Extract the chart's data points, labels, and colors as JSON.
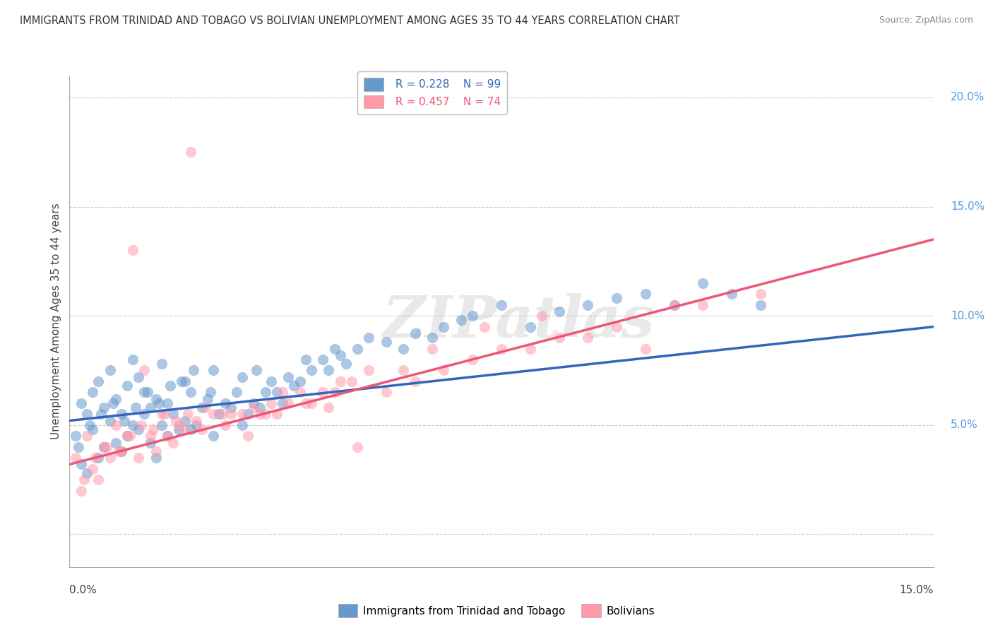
{
  "title": "IMMIGRANTS FROM TRINIDAD AND TOBAGO VS BOLIVIAN UNEMPLOYMENT AMONG AGES 35 TO 44 YEARS CORRELATION CHART",
  "source": "Source: ZipAtlas.com",
  "ylabel": "Unemployment Among Ages 35 to 44 years",
  "legend_blue_label": "Immigrants from Trinidad and Tobago",
  "legend_pink_label": "Bolivians",
  "R_blue": 0.228,
  "N_blue": 99,
  "R_pink": 0.457,
  "N_pink": 74,
  "blue_color": "#6699CC",
  "pink_color": "#FF99AA",
  "blue_line_color": "#3366BB",
  "pink_line_color": "#EE5577",
  "xmin": 0.0,
  "xmax": 15.0,
  "ymin": -1.5,
  "ymax": 21.0,
  "ytick_positions": [
    0.0,
    5.0,
    10.0,
    15.0,
    20.0
  ],
  "ytick_labels": [
    "",
    "5.0%",
    "10.0%",
    "15.0%",
    "20.0%"
  ],
  "blue_line_start_y": 5.2,
  "blue_line_end_y": 9.5,
  "pink_line_start_y": 3.2,
  "pink_line_end_y": 13.5,
  "watermark_text": "ZIPatlas",
  "blue_scatter_x": [
    0.1,
    0.2,
    0.2,
    0.3,
    0.3,
    0.4,
    0.4,
    0.5,
    0.5,
    0.6,
    0.6,
    0.7,
    0.7,
    0.8,
    0.8,
    0.9,
    0.9,
    1.0,
    1.0,
    1.1,
    1.1,
    1.2,
    1.2,
    1.3,
    1.3,
    1.4,
    1.4,
    1.5,
    1.5,
    1.6,
    1.6,
    1.7,
    1.7,
    1.8,
    1.9,
    2.0,
    2.0,
    2.1,
    2.1,
    2.2,
    2.3,
    2.4,
    2.5,
    2.5,
    2.6,
    2.7,
    2.8,
    2.9,
    3.0,
    3.0,
    3.1,
    3.2,
    3.3,
    3.4,
    3.5,
    3.6,
    3.7,
    3.8,
    3.9,
    4.0,
    4.2,
    4.4,
    4.5,
    4.6,
    4.7,
    4.8,
    5.0,
    5.2,
    5.5,
    5.8,
    6.0,
    6.3,
    6.5,
    6.8,
    7.0,
    7.5,
    8.0,
    8.5,
    9.0,
    9.5,
    10.0,
    10.5,
    11.0,
    11.5,
    12.0,
    0.15,
    0.35,
    0.55,
    0.75,
    0.95,
    1.15,
    1.35,
    1.55,
    1.75,
    1.95,
    2.15,
    2.45,
    3.25,
    4.1
  ],
  "blue_scatter_y": [
    4.5,
    3.2,
    6.0,
    5.5,
    2.8,
    4.8,
    6.5,
    3.5,
    7.0,
    4.0,
    5.8,
    5.2,
    7.5,
    4.2,
    6.2,
    3.8,
    5.5,
    4.5,
    6.8,
    5.0,
    8.0,
    4.8,
    7.2,
    5.5,
    6.5,
    4.2,
    5.8,
    3.5,
    6.2,
    5.0,
    7.8,
    4.5,
    6.0,
    5.5,
    4.8,
    5.2,
    7.0,
    4.8,
    6.5,
    5.0,
    5.8,
    6.2,
    4.5,
    7.5,
    5.5,
    6.0,
    5.8,
    6.5,
    5.0,
    7.2,
    5.5,
    6.0,
    5.8,
    6.5,
    7.0,
    6.5,
    6.0,
    7.2,
    6.8,
    7.0,
    7.5,
    8.0,
    7.5,
    8.5,
    8.2,
    7.8,
    8.5,
    9.0,
    8.8,
    8.5,
    9.2,
    9.0,
    9.5,
    9.8,
    10.0,
    10.5,
    9.5,
    10.2,
    10.5,
    10.8,
    11.0,
    10.5,
    11.5,
    11.0,
    10.5,
    4.0,
    5.0,
    5.5,
    6.0,
    5.2,
    5.8,
    6.5,
    6.0,
    6.8,
    7.0,
    7.5,
    6.5,
    7.5,
    8.0
  ],
  "pink_scatter_x": [
    0.1,
    0.2,
    0.3,
    0.4,
    0.5,
    0.6,
    0.7,
    0.8,
    0.9,
    1.0,
    1.1,
    1.2,
    1.3,
    1.4,
    1.5,
    1.6,
    1.7,
    1.8,
    1.9,
    2.0,
    2.1,
    2.2,
    2.3,
    2.5,
    2.7,
    2.8,
    3.0,
    3.1,
    3.2,
    3.4,
    3.5,
    3.6,
    3.8,
    4.0,
    4.2,
    4.4,
    4.5,
    4.7,
    4.9,
    5.0,
    5.5,
    6.0,
    6.5,
    7.0,
    7.5,
    8.0,
    8.5,
    9.0,
    9.5,
    10.0,
    10.5,
    11.0,
    12.0,
    0.25,
    0.45,
    0.65,
    0.85,
    1.05,
    1.25,
    1.45,
    1.65,
    1.85,
    2.05,
    2.35,
    2.65,
    3.3,
    3.7,
    4.1,
    4.6,
    5.2,
    5.8,
    6.3,
    7.2,
    8.2
  ],
  "pink_scatter_y": [
    3.5,
    2.0,
    4.5,
    3.0,
    2.5,
    4.0,
    3.5,
    5.0,
    3.8,
    4.5,
    13.0,
    3.5,
    7.5,
    4.5,
    3.8,
    5.5,
    4.5,
    4.2,
    5.0,
    4.8,
    17.5,
    5.2,
    4.8,
    5.5,
    5.0,
    5.5,
    5.5,
    4.5,
    5.8,
    5.5,
    6.0,
    5.5,
    6.0,
    6.5,
    6.0,
    6.5,
    5.8,
    7.0,
    7.0,
    4.0,
    6.5,
    7.0,
    7.5,
    8.0,
    8.5,
    8.5,
    9.0,
    9.0,
    9.5,
    8.5,
    10.5,
    10.5,
    11.0,
    2.5,
    3.5,
    4.0,
    3.8,
    4.5,
    5.0,
    4.8,
    5.5,
    5.2,
    5.5,
    5.8,
    5.5,
    5.5,
    6.5,
    6.0,
    6.5,
    7.5,
    7.5,
    8.5,
    9.5,
    10.0
  ]
}
